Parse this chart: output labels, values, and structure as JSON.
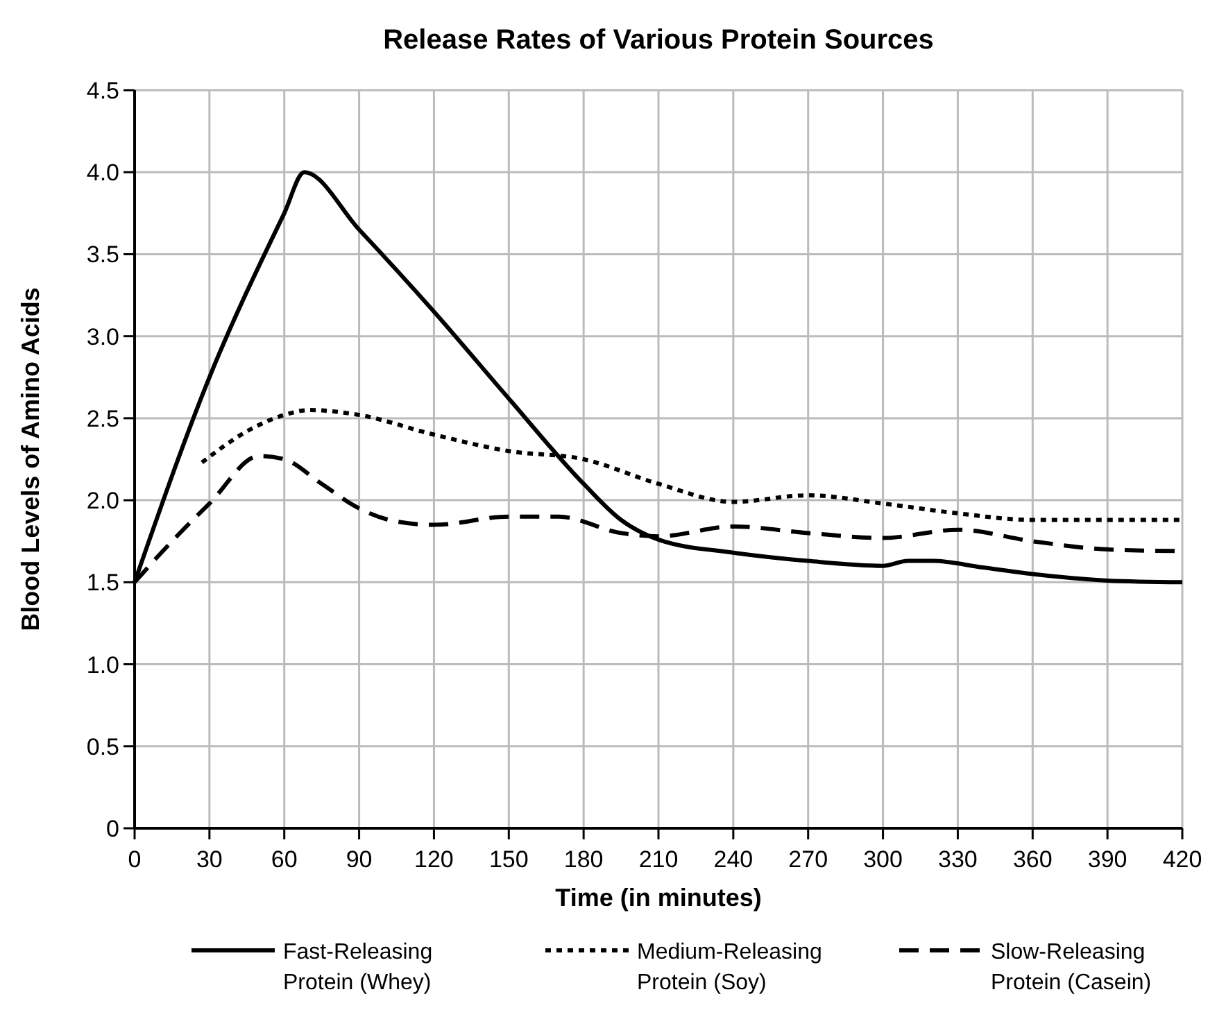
{
  "chart_data": {
    "type": "line",
    "title": "Release Rates of Various Protein Sources",
    "xlabel": "Time (in minutes)",
    "ylabel": "Blood Levels of Amino Acids",
    "xlim": [
      0,
      420
    ],
    "xticks": [
      0,
      30,
      60,
      90,
      120,
      150,
      180,
      210,
      240,
      270,
      300,
      330,
      360,
      390,
      420
    ],
    "ylim": [
      0,
      4.5
    ],
    "yticks": [
      {
        "value": 0,
        "label": "0"
      },
      {
        "value": 0.5,
        "label": "0.5"
      },
      {
        "value": 1,
        "label": "1.0"
      },
      {
        "value": 1.5,
        "label": "1.5"
      },
      {
        "value": 2,
        "label": "2.0"
      },
      {
        "value": 2.5,
        "label": "2.5"
      },
      {
        "value": 3,
        "label": "3.0"
      },
      {
        "value": 3.5,
        "label": "3.5"
      },
      {
        "value": 4,
        "label": "4.0"
      },
      {
        "value": 4.5,
        "label": "4.5"
      }
    ],
    "grid": true,
    "legend": "bottom",
    "series": [
      {
        "name": "Fast-Releasing Protein (Whey)",
        "color": "#000000",
        "line_style": "solid",
        "x": [
          0,
          30,
          60,
          68,
          90,
          120,
          150,
          180,
          195,
          210,
          240,
          270,
          300,
          310,
          320,
          340,
          360,
          390,
          420
        ],
        "values": [
          1.5,
          2.75,
          3.75,
          4.0,
          3.65,
          3.15,
          2.62,
          2.1,
          1.88,
          1.76,
          1.68,
          1.63,
          1.6,
          1.63,
          1.63,
          1.59,
          1.55,
          1.51,
          1.5
        ]
      },
      {
        "name": "Medium-Releasing Protein (Soy)",
        "color": "#000000",
        "line_style": "dotted",
        "x": [
          27,
          45,
          60,
          70,
          90,
          120,
          150,
          180,
          210,
          240,
          270,
          300,
          330,
          360,
          390,
          420
        ],
        "values": [
          2.23,
          2.42,
          2.52,
          2.55,
          2.52,
          2.4,
          2.3,
          2.25,
          2.1,
          1.99,
          2.03,
          1.98,
          1.92,
          1.88,
          1.88,
          1.88
        ]
      },
      {
        "name": "Slow-Releasing Protein (Casein)",
        "color": "#000000",
        "line_style": "dashed",
        "x": [
          0,
          15,
          30,
          50,
          60,
          75,
          90,
          105,
          120,
          150,
          170,
          195,
          210,
          240,
          270,
          300,
          330,
          360,
          390,
          420
        ],
        "values": [
          1.5,
          1.75,
          1.98,
          2.27,
          2.25,
          2.1,
          1.95,
          1.87,
          1.85,
          1.9,
          1.9,
          1.8,
          1.78,
          1.84,
          1.8,
          1.77,
          1.82,
          1.75,
          1.7,
          1.69
        ]
      }
    ]
  }
}
